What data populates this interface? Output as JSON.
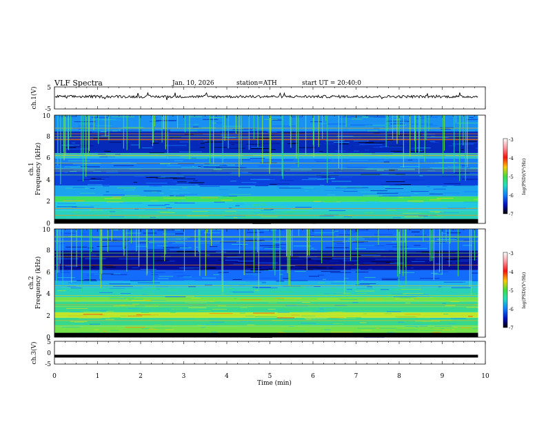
{
  "header": {
    "title": "VLF Spectra",
    "date": "Jan. 10, 2026",
    "station": "station=ATH",
    "start": "start UT =  20:40:0"
  },
  "colors": {
    "background": "#ffffff",
    "ink": "#000000",
    "spec_low": "#0a0a6e",
    "spec_mid": "#2ab0ff",
    "spec_green": "#3fe06a",
    "spec_high": "#ff2020"
  },
  "chart_data": [
    {
      "type": "line",
      "name": "ch1-waveform",
      "ylabel": "ch.1(V)",
      "ylim": [
        -5,
        5
      ],
      "yticks": [
        5,
        -5
      ],
      "xlim": [
        0,
        10
      ],
      "series": [
        {
          "name": "ch.1",
          "approx_level": 0.6,
          "approx_amplitude": 1.0,
          "x_end": 9.83
        }
      ]
    },
    {
      "type": "heatmap",
      "name": "ch1-spectrogram",
      "ylabel": "ch.1 Frequency (kHz)",
      "ylim": [
        0,
        10
      ],
      "yticks": [
        0,
        2,
        4,
        6,
        8,
        10
      ],
      "xlim": [
        0,
        9.83
      ],
      "colorbar": {
        "label": "log(PSD)(V²/Hz)",
        "range": [
          -7,
          -3
        ],
        "ticks": [
          -3,
          -4,
          -5,
          -6,
          -7
        ]
      },
      "bands_khz": [
        {
          "f": [
            0.0,
            0.4
          ],
          "level": -7.0
        },
        {
          "f": [
            0.4,
            1.2
          ],
          "level": -5.2
        },
        {
          "f": [
            1.2,
            2.0
          ],
          "level": -5.4
        },
        {
          "f": [
            2.0,
            2.5
          ],
          "level": -4.8
        },
        {
          "f": [
            2.5,
            3.5
          ],
          "level": -5.6
        },
        {
          "f": [
            3.5,
            5.0
          ],
          "level": -6.2
        },
        {
          "f": [
            5.0,
            6.0
          ],
          "level": -5.8
        },
        {
          "f": [
            6.0,
            6.5
          ],
          "level": -5.5
        },
        {
          "f": [
            6.5,
            8.5
          ],
          "level": -6.4
        },
        {
          "f": [
            8.5,
            10.0
          ],
          "level": -5.7
        }
      ]
    },
    {
      "type": "heatmap",
      "name": "ch2-spectrogram",
      "ylabel": "ch.2 Frequency (kHz)",
      "ylim": [
        0,
        10
      ],
      "yticks": [
        0,
        2,
        4,
        6,
        8,
        10
      ],
      "xlim": [
        0,
        9.83
      ],
      "colorbar": {
        "label": "log(PSD)(V²/Hz)",
        "range": [
          -7,
          -3
        ],
        "ticks": [
          -3,
          -4,
          -5,
          -6,
          -7
        ]
      },
      "bands_khz": [
        {
          "f": [
            0.0,
            0.4
          ],
          "level": -7.0
        },
        {
          "f": [
            0.4,
            1.0
          ],
          "level": -4.6
        },
        {
          "f": [
            1.0,
            1.8
          ],
          "level": -5.0
        },
        {
          "f": [
            1.8,
            2.3
          ],
          "level": -4.3
        },
        {
          "f": [
            2.3,
            3.3
          ],
          "level": -5.0
        },
        {
          "f": [
            3.3,
            3.7
          ],
          "level": -4.6
        },
        {
          "f": [
            3.7,
            4.6
          ],
          "level": -5.2
        },
        {
          "f": [
            4.6,
            5.2
          ],
          "level": -5.5
        },
        {
          "f": [
            5.2,
            6.2
          ],
          "level": -5.9
        },
        {
          "f": [
            6.2,
            8.0
          ],
          "level": -6.6
        },
        {
          "f": [
            8.0,
            10.0
          ],
          "level": -5.9
        }
      ]
    },
    {
      "type": "line",
      "name": "ch3-waveform",
      "ylabel": "ch.3(V)",
      "ylim": [
        -5,
        5
      ],
      "yticks": [
        5,
        0,
        -5
      ],
      "xlim": [
        0,
        10
      ],
      "series": [
        {
          "name": "ch.3",
          "approx_level": -1.5,
          "approx_amplitude": 0.0,
          "x_end": 9.83
        }
      ]
    }
  ],
  "xaxis": {
    "label": "Time (min)",
    "ticks": [
      "0",
      "1",
      "2",
      "3",
      "4",
      "5",
      "6",
      "7",
      "8",
      "9",
      "10"
    ],
    "xlim": [
      0,
      10
    ]
  },
  "labels": {
    "ch1_v": "ch.1(V)",
    "ch1_f1": "ch.1",
    "ch1_f2": "Frequency (kHz)",
    "ch2_f1": "ch.2",
    "ch2_f2": "Frequency (kHz)",
    "ch3_v": "ch.3(V)",
    "cbar": "log(PSD)(V²/Hz)",
    "y_p5": "5",
    "y_m5": "-5",
    "y_p5b": "5",
    "y_0": "0",
    "y_m5b": "-5",
    "f0": "0",
    "f2": "2",
    "f4": "4",
    "f6": "6",
    "f8": "8",
    "f10": "10",
    "g0": "0",
    "g2": "2",
    "g4": "4",
    "g6": "6",
    "g8": "8",
    "g10": "10",
    "c3": "-3",
    "c4": "-4",
    "c5": "-5",
    "c6": "-6",
    "c7": "-7",
    "d3": "-3",
    "d4": "-4",
    "d5": "-5",
    "d6": "-6",
    "d7": "-7"
  }
}
